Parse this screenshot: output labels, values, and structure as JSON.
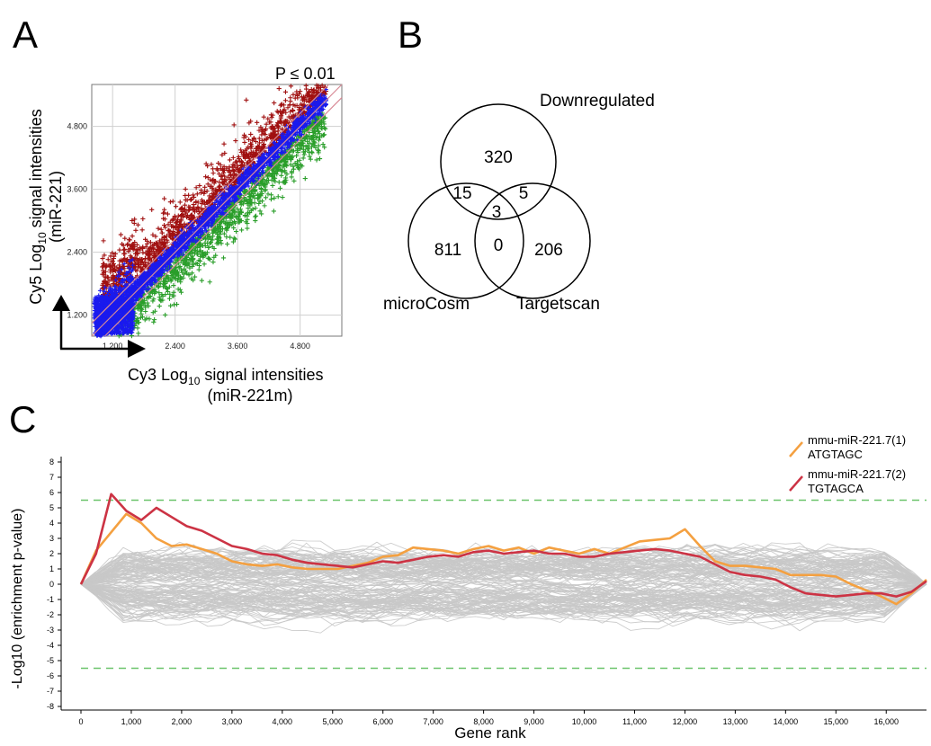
{
  "panels": {
    "a": "A",
    "b": "B",
    "c": "C"
  },
  "chart_data": [
    {
      "type": "scatter",
      "title": "P ≤ 0.01",
      "xlabel_main": "Cy3 Log",
      "xlabel_sub": "10",
      "xlabel_tail": " signal intensities",
      "xlabel_line2": "(miR-221m)",
      "ylabel_main": "Cy5 Log",
      "ylabel_sub": "10",
      "ylabel_tail": " signal intensities",
      "ylabel_line2": "(miR-221)",
      "xlim": [
        0.8,
        5.6
      ],
      "ylim": [
        0.8,
        5.6
      ],
      "xticks": [
        "1.200",
        "2.400",
        "3.600",
        "4.800"
      ],
      "yticks": [
        "1.200",
        "2.400",
        "3.600",
        "4.800"
      ],
      "grid": true,
      "series_colors": {
        "up": "#a01010",
        "unchanged": "#1a1aee",
        "down": "#2a9e2a"
      }
    },
    {
      "type": "venn",
      "sets": [
        "Downregulated",
        "microCosm",
        "Targetscan"
      ],
      "regions": {
        "downregulated_only": "320",
        "downregulated_microcosm": "15",
        "downregulated_targetscan": "5",
        "all_three": "3",
        "microcosm_only": "811",
        "microcosm_targetscan": "0",
        "targetscan_only": "206"
      }
    },
    {
      "type": "line",
      "xlabel": "Gene rank",
      "ylabel": "-Log10 (enrichment p-value)",
      "xlim": [
        0,
        16800
      ],
      "ylim": [
        -8,
        8
      ],
      "xticks": [
        "0",
        "1,000",
        "2,000",
        "3,000",
        "4,000",
        "5,000",
        "6,000",
        "7,000",
        "8,000",
        "9,000",
        "10,000",
        "11,000",
        "12,000",
        "13,000",
        "14,000",
        "15,000",
        "16,000"
      ],
      "yticks": [
        "8",
        "7",
        "6",
        "5",
        "4",
        "3",
        "2",
        "1",
        "0",
        "-1",
        "-2",
        "-3",
        "-4",
        "-5",
        "-6",
        "-7",
        "-8"
      ],
      "threshold": 5.5,
      "threshold_color": "#6bc46b",
      "background_color": "#c8c8c8",
      "series": [
        {
          "name": "mmu-miR-221.7(1)",
          "name2": "ATGTAGC",
          "color": "#f4a040",
          "x": [
            0,
            300,
            600,
            900,
            1200,
            1500,
            1800,
            2100,
            2400,
            2700,
            3000,
            3300,
            3600,
            3900,
            4200,
            4500,
            4800,
            5100,
            5400,
            5700,
            6000,
            6300,
            6600,
            6900,
            7200,
            7500,
            7800,
            8100,
            8400,
            8700,
            9000,
            9300,
            9600,
            9900,
            10200,
            10500,
            10800,
            11100,
            11400,
            11700,
            12000,
            12300,
            12600,
            12900,
            13200,
            13500,
            13800,
            14100,
            14400,
            14700,
            15000,
            15300,
            15600,
            15900,
            16200,
            16500,
            16800
          ],
          "y": [
            0,
            2.2,
            3.4,
            4.6,
            4.0,
            3.0,
            2.5,
            2.6,
            2.3,
            2.0,
            1.5,
            1.3,
            1.2,
            1.3,
            1.1,
            1.0,
            1.0,
            1.0,
            1.2,
            1.4,
            1.8,
            1.9,
            2.4,
            2.3,
            2.2,
            2.0,
            2.3,
            2.5,
            2.2,
            2.4,
            2.0,
            2.4,
            2.2,
            2.0,
            2.3,
            2.0,
            2.4,
            2.8,
            2.9,
            3.0,
            3.6,
            2.5,
            1.5,
            1.2,
            1.2,
            1.1,
            1.0,
            0.6,
            0.6,
            0.6,
            0.5,
            0.0,
            -0.4,
            -0.8,
            -1.3,
            -0.6,
            0.3
          ]
        },
        {
          "name": "mmu-miR-221.7(2)",
          "name2": "TGTAGCA",
          "color": "#cc3344",
          "x": [
            0,
            300,
            600,
            900,
            1200,
            1500,
            1800,
            2100,
            2400,
            2700,
            3000,
            3300,
            3600,
            3900,
            4200,
            4500,
            4800,
            5100,
            5400,
            5700,
            6000,
            6300,
            6600,
            6900,
            7200,
            7500,
            7800,
            8100,
            8400,
            8700,
            9000,
            9300,
            9600,
            9900,
            10200,
            10500,
            10800,
            11100,
            11400,
            11700,
            12000,
            12300,
            12600,
            12900,
            13200,
            13500,
            13800,
            14100,
            14400,
            14700,
            15000,
            15300,
            15600,
            15900,
            16200,
            16500,
            16800
          ],
          "y": [
            0,
            2.0,
            5.9,
            4.8,
            4.2,
            5.0,
            4.4,
            3.8,
            3.5,
            3.0,
            2.5,
            2.3,
            2.0,
            1.9,
            1.6,
            1.4,
            1.3,
            1.2,
            1.1,
            1.3,
            1.5,
            1.4,
            1.6,
            1.8,
            1.9,
            1.8,
            2.1,
            2.2,
            2.0,
            2.1,
            2.2,
            2.0,
            2.0,
            1.8,
            1.8,
            2.0,
            2.1,
            2.2,
            2.3,
            2.2,
            2.0,
            1.8,
            1.3,
            0.8,
            0.6,
            0.5,
            0.3,
            -0.2,
            -0.6,
            -0.7,
            -0.8,
            -0.7,
            -0.6,
            -0.6,
            -0.8,
            -0.5,
            0.2
          ]
        }
      ]
    }
  ]
}
